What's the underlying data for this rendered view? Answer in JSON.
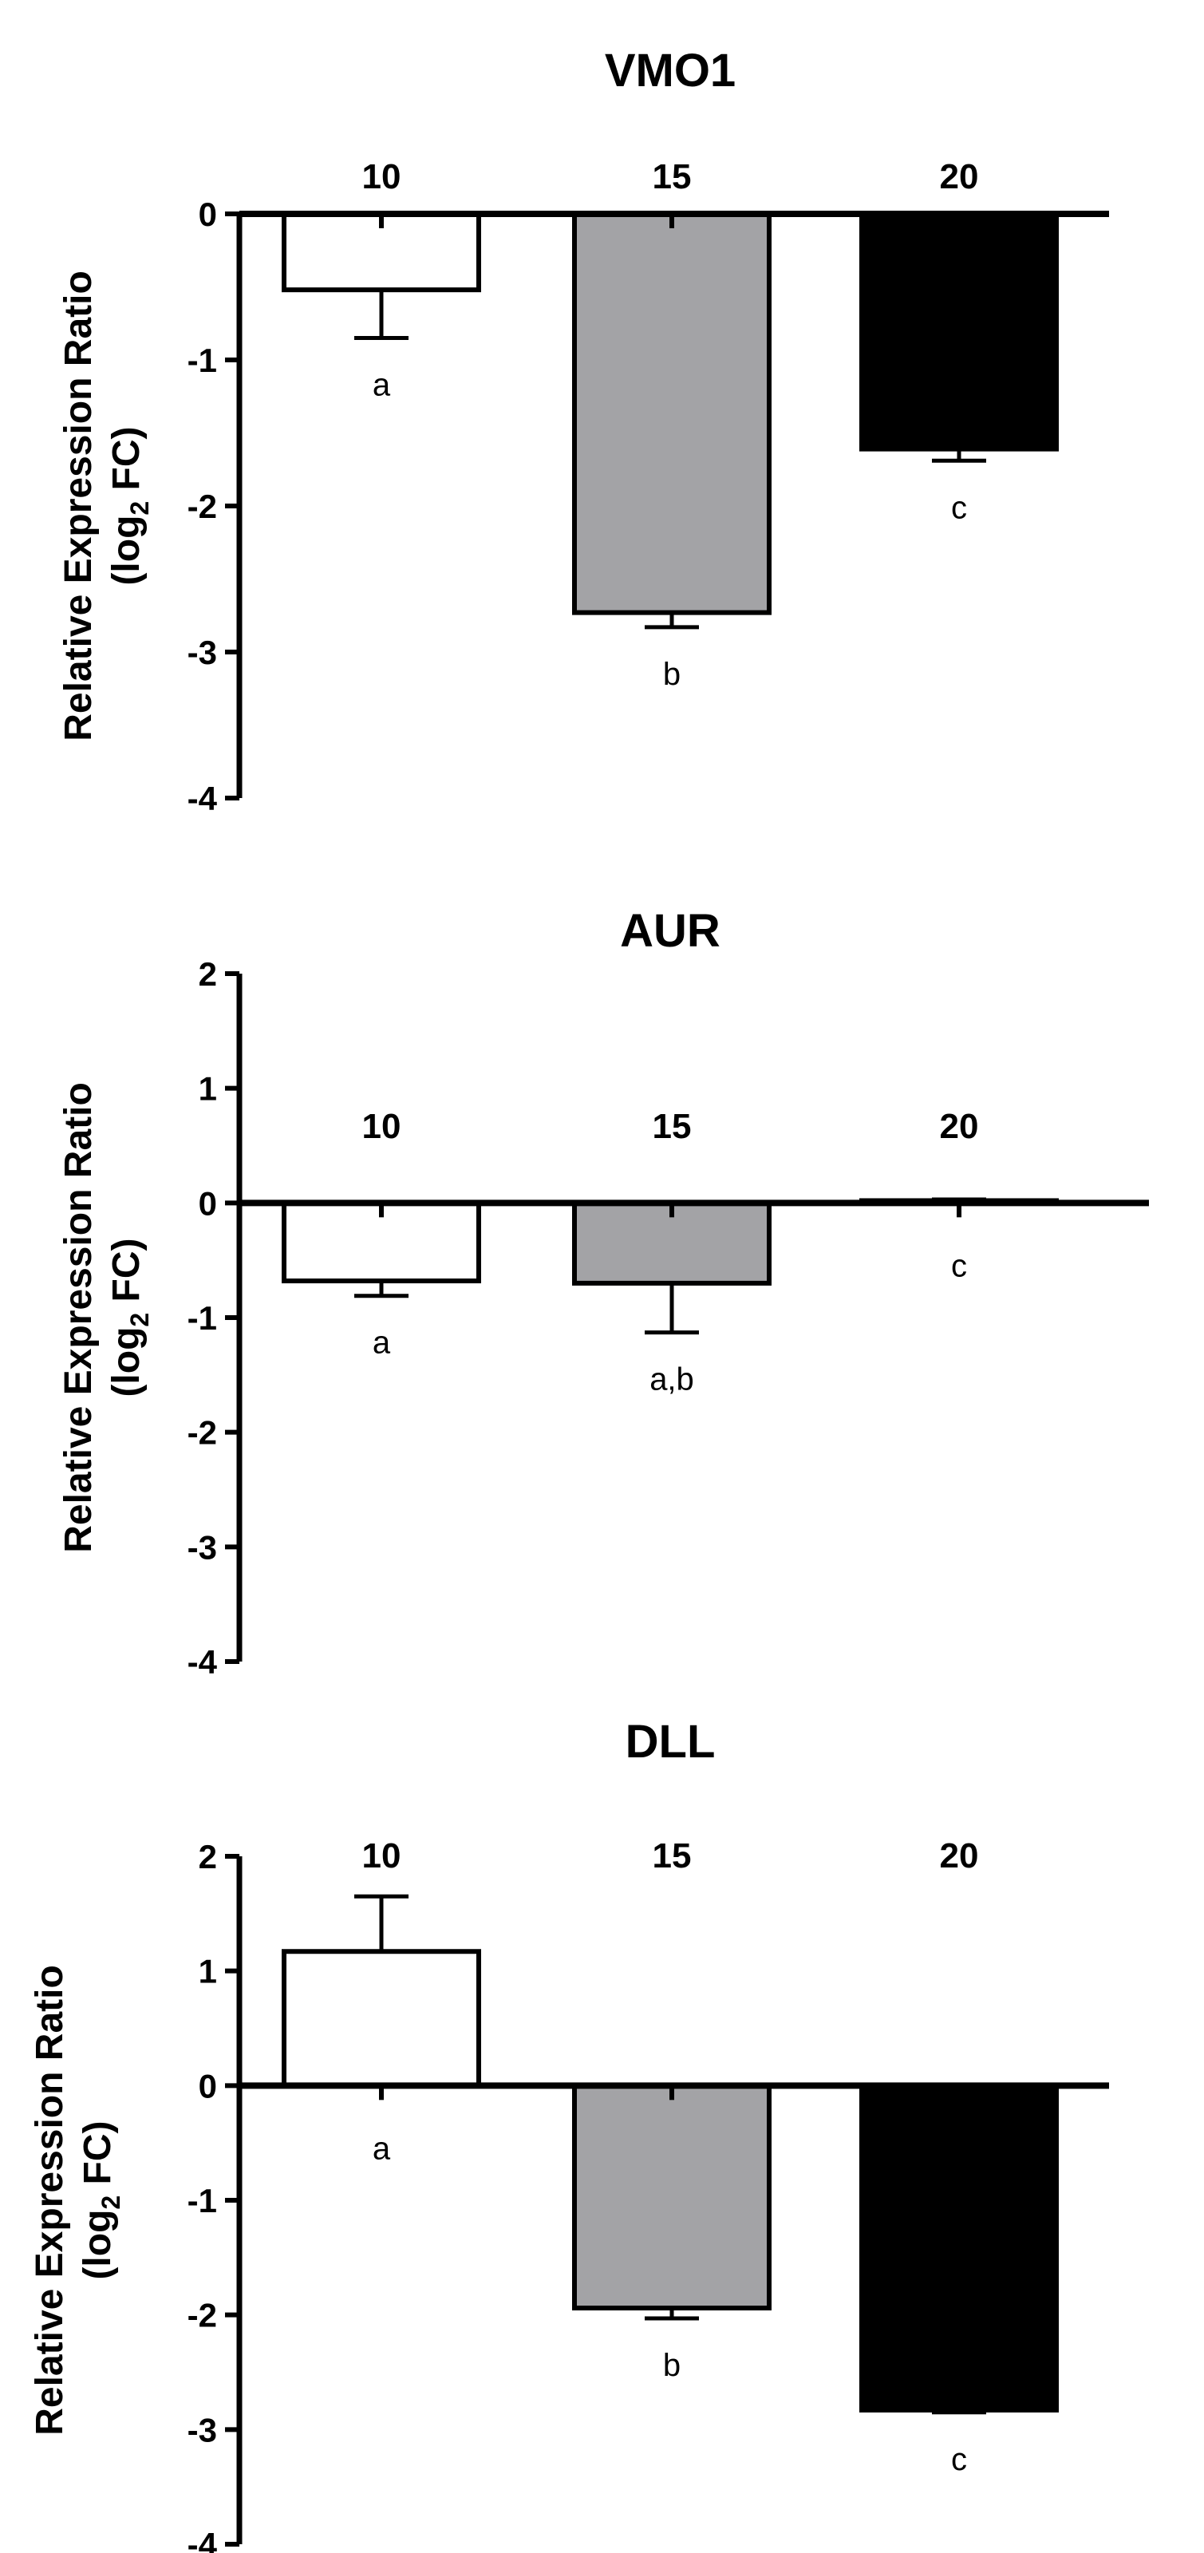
{
  "chart_data": [
    {
      "type": "bar",
      "title": "VMO1",
      "ylabel_line1": "Relative Expression Ratio",
      "ylabel_line2": "(log",
      "ylabel_sub": "2",
      "ylabel_line2_end": " FC)",
      "categories": [
        "10",
        "15",
        "20"
      ],
      "values": [
        -0.52,
        -2.73,
        -1.61
      ],
      "errors": [
        0.33,
        0.1,
        0.08
      ],
      "significance": [
        "a",
        "b",
        "c"
      ],
      "colors": [
        "#ffffff",
        "#a3a3a6",
        "#000000"
      ],
      "ylim": [
        -4,
        0
      ],
      "yticks": [
        0,
        -1,
        -2,
        -3,
        -4
      ],
      "ytick_labels": [
        "0",
        "-1",
        "-2",
        "-3",
        "-4"
      ],
      "category_labels_position": "top",
      "grid": false
    },
    {
      "type": "bar",
      "title": "AUR",
      "ylabel_line1": "Relative Expression Ratio",
      "ylabel_line2": "(log",
      "ylabel_sub": "2",
      "ylabel_line2_end": " FC)",
      "categories": [
        "10",
        "15",
        "20"
      ],
      "values": [
        -0.68,
        -0.7,
        0.02
      ],
      "errors": [
        0.13,
        0.43,
        0.01
      ],
      "significance": [
        "a",
        "a,b",
        "c"
      ],
      "colors": [
        "#ffffff",
        "#a3a3a6",
        "#000000"
      ],
      "ylim": [
        -4,
        2
      ],
      "yticks": [
        2,
        1,
        0,
        -1,
        -2,
        -3,
        -4
      ],
      "ytick_labels": [
        "2",
        "1",
        "0",
        "-1",
        "-2",
        "-3",
        "-4"
      ],
      "category_labels_position": "top",
      "grid": false
    },
    {
      "type": "bar",
      "title": "DLL",
      "ylabel_line1": "Relative Expression Ratio",
      "ylabel_line2": "(log",
      "ylabel_sub": "2",
      "ylabel_line2_end": " FC)",
      "categories": [
        "10",
        "15",
        "20"
      ],
      "values": [
        1.17,
        -1.94,
        -2.83
      ],
      "errors": [
        0.48,
        0.09,
        0.02
      ],
      "significance": [
        "a",
        "b",
        "c"
      ],
      "colors": [
        "#ffffff",
        "#a3a3a6",
        "#000000"
      ],
      "ylim": [
        -4,
        2
      ],
      "yticks": [
        2,
        1,
        0,
        -1,
        -2,
        -3,
        -4
      ],
      "ytick_labels": [
        "2",
        "1",
        "0",
        "-1",
        "-2",
        "-3",
        "-4"
      ],
      "category_labels_position": "top",
      "grid": false
    }
  ]
}
